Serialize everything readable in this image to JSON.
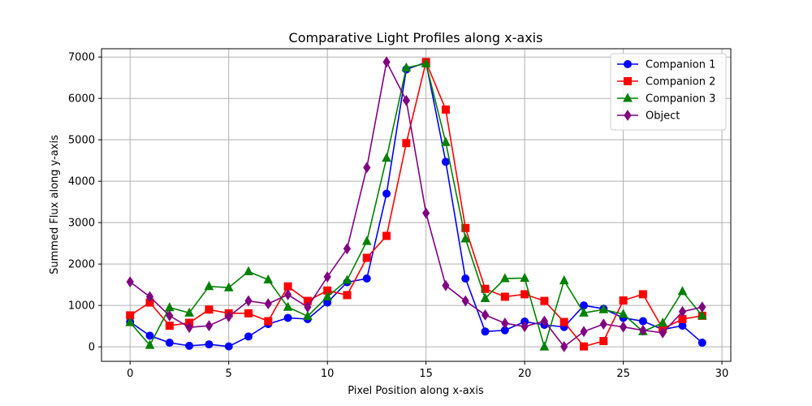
{
  "chart_data": {
    "type": "line",
    "title": "Comparative Light Profiles along x-axis",
    "xlabel": "Pixel Position along x-axis",
    "ylabel": "Summed Flux along y-axis",
    "xlim": [
      -1.45,
      30.45
    ],
    "ylim": [
      -350,
      7200
    ],
    "xticks": [
      0,
      5,
      10,
      15,
      20,
      25,
      30
    ],
    "yticks": [
      0,
      1000,
      2000,
      3000,
      4000,
      5000,
      6000,
      7000
    ],
    "grid": true,
    "legend_position": "top-right",
    "x": [
      0,
      1,
      2,
      3,
      4,
      5,
      6,
      7,
      8,
      9,
      10,
      11,
      12,
      13,
      14,
      15,
      16,
      17,
      18,
      19,
      20,
      21,
      22,
      23,
      24,
      25,
      26,
      27,
      28,
      29
    ],
    "series": [
      {
        "name": "Companion 1",
        "color": "#0000ff",
        "marker": "circle",
        "values": [
          600,
          270,
          100,
          25,
          60,
          10,
          250,
          550,
          700,
          670,
          1070,
          1560,
          1650,
          3700,
          6700,
          6870,
          4470,
          1650,
          370,
          400,
          610,
          530,
          480,
          1000,
          920,
          700,
          620,
          420,
          510,
          100
        ]
      },
      {
        "name": "Companion 2",
        "color": "#ff0000",
        "marker": "square",
        "values": [
          760,
          1070,
          510,
          580,
          900,
          810,
          810,
          620,
          1460,
          1110,
          1360,
          1250,
          2150,
          2680,
          4920,
          6880,
          5730,
          2870,
          1400,
          1210,
          1270,
          1110,
          600,
          10,
          140,
          1120,
          1270,
          440,
          670,
          750
        ]
      },
      {
        "name": "Companion 3",
        "color": "#008000",
        "marker": "triangle",
        "values": [
          590,
          40,
          950,
          820,
          1460,
          1430,
          1820,
          1620,
          960,
          740,
          1210,
          1610,
          2550,
          4560,
          6740,
          6840,
          4940,
          2610,
          1170,
          1650,
          1660,
          0,
          1600,
          820,
          900,
          790,
          370,
          580,
          1340,
          750
        ]
      },
      {
        "name": "Object",
        "color": "#800080",
        "marker": "diamond",
        "values": [
          1570,
          1210,
          750,
          470,
          510,
          730,
          1110,
          1040,
          1260,
          960,
          1690,
          2370,
          4330,
          6880,
          5950,
          3230,
          1480,
          1110,
          770,
          570,
          490,
          620,
          5,
          370,
          550,
          480,
          400,
          340,
          850,
          960
        ]
      }
    ]
  }
}
